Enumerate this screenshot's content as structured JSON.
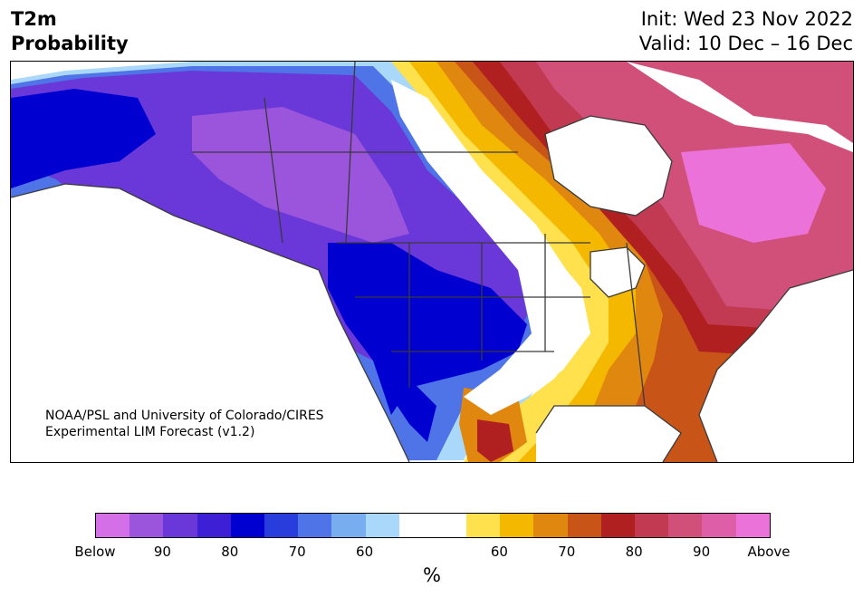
{
  "title": {
    "line1": "T2m",
    "line2": "Probability"
  },
  "init_label": "Init: Wed 23 Nov 2022",
  "valid_label": "Valid: 10 Dec – 16 Dec",
  "credit": {
    "line1": "NOAA/PSL and University of Colorado/CIRES",
    "line2": "Experimental LIM Forecast (v1.2)"
  },
  "colorbar": {
    "unit": "%",
    "colors": [
      "#d46fe8",
      "#9a55dc",
      "#6a38d9",
      "#3d1fd6",
      "#0000d0",
      "#283ddc",
      "#4f74e7",
      "#78adf0",
      "#aad8fa",
      "#ffffff",
      "#ffffff",
      "#ffe04d",
      "#f5b800",
      "#e0870f",
      "#c95417",
      "#b02020",
      "#c23a52",
      "#d0507a",
      "#df5ea8",
      "#ea72d8"
    ],
    "tick_labels": [
      "Below",
      "90",
      "80",
      "70",
      "60",
      "60",
      "70",
      "80",
      "90",
      "Above"
    ]
  },
  "map": {
    "region": "North America",
    "palette": {
      "cold_light": "#aad8fa",
      "cold_mid": "#4f74e7",
      "cold_deep": "#0000d0",
      "cold_purple": "#6a38d9",
      "cold_violet": "#9a55dc",
      "warm_yellow": "#ffe04d",
      "warm_gold": "#f5b800",
      "warm_orange": "#e0870f",
      "warm_burnt": "#c95417",
      "warm_red": "#b02020",
      "warm_rose": "#c23a52",
      "warm_pink": "#d0507a",
      "warm_magenta": "#ea72d8"
    }
  }
}
